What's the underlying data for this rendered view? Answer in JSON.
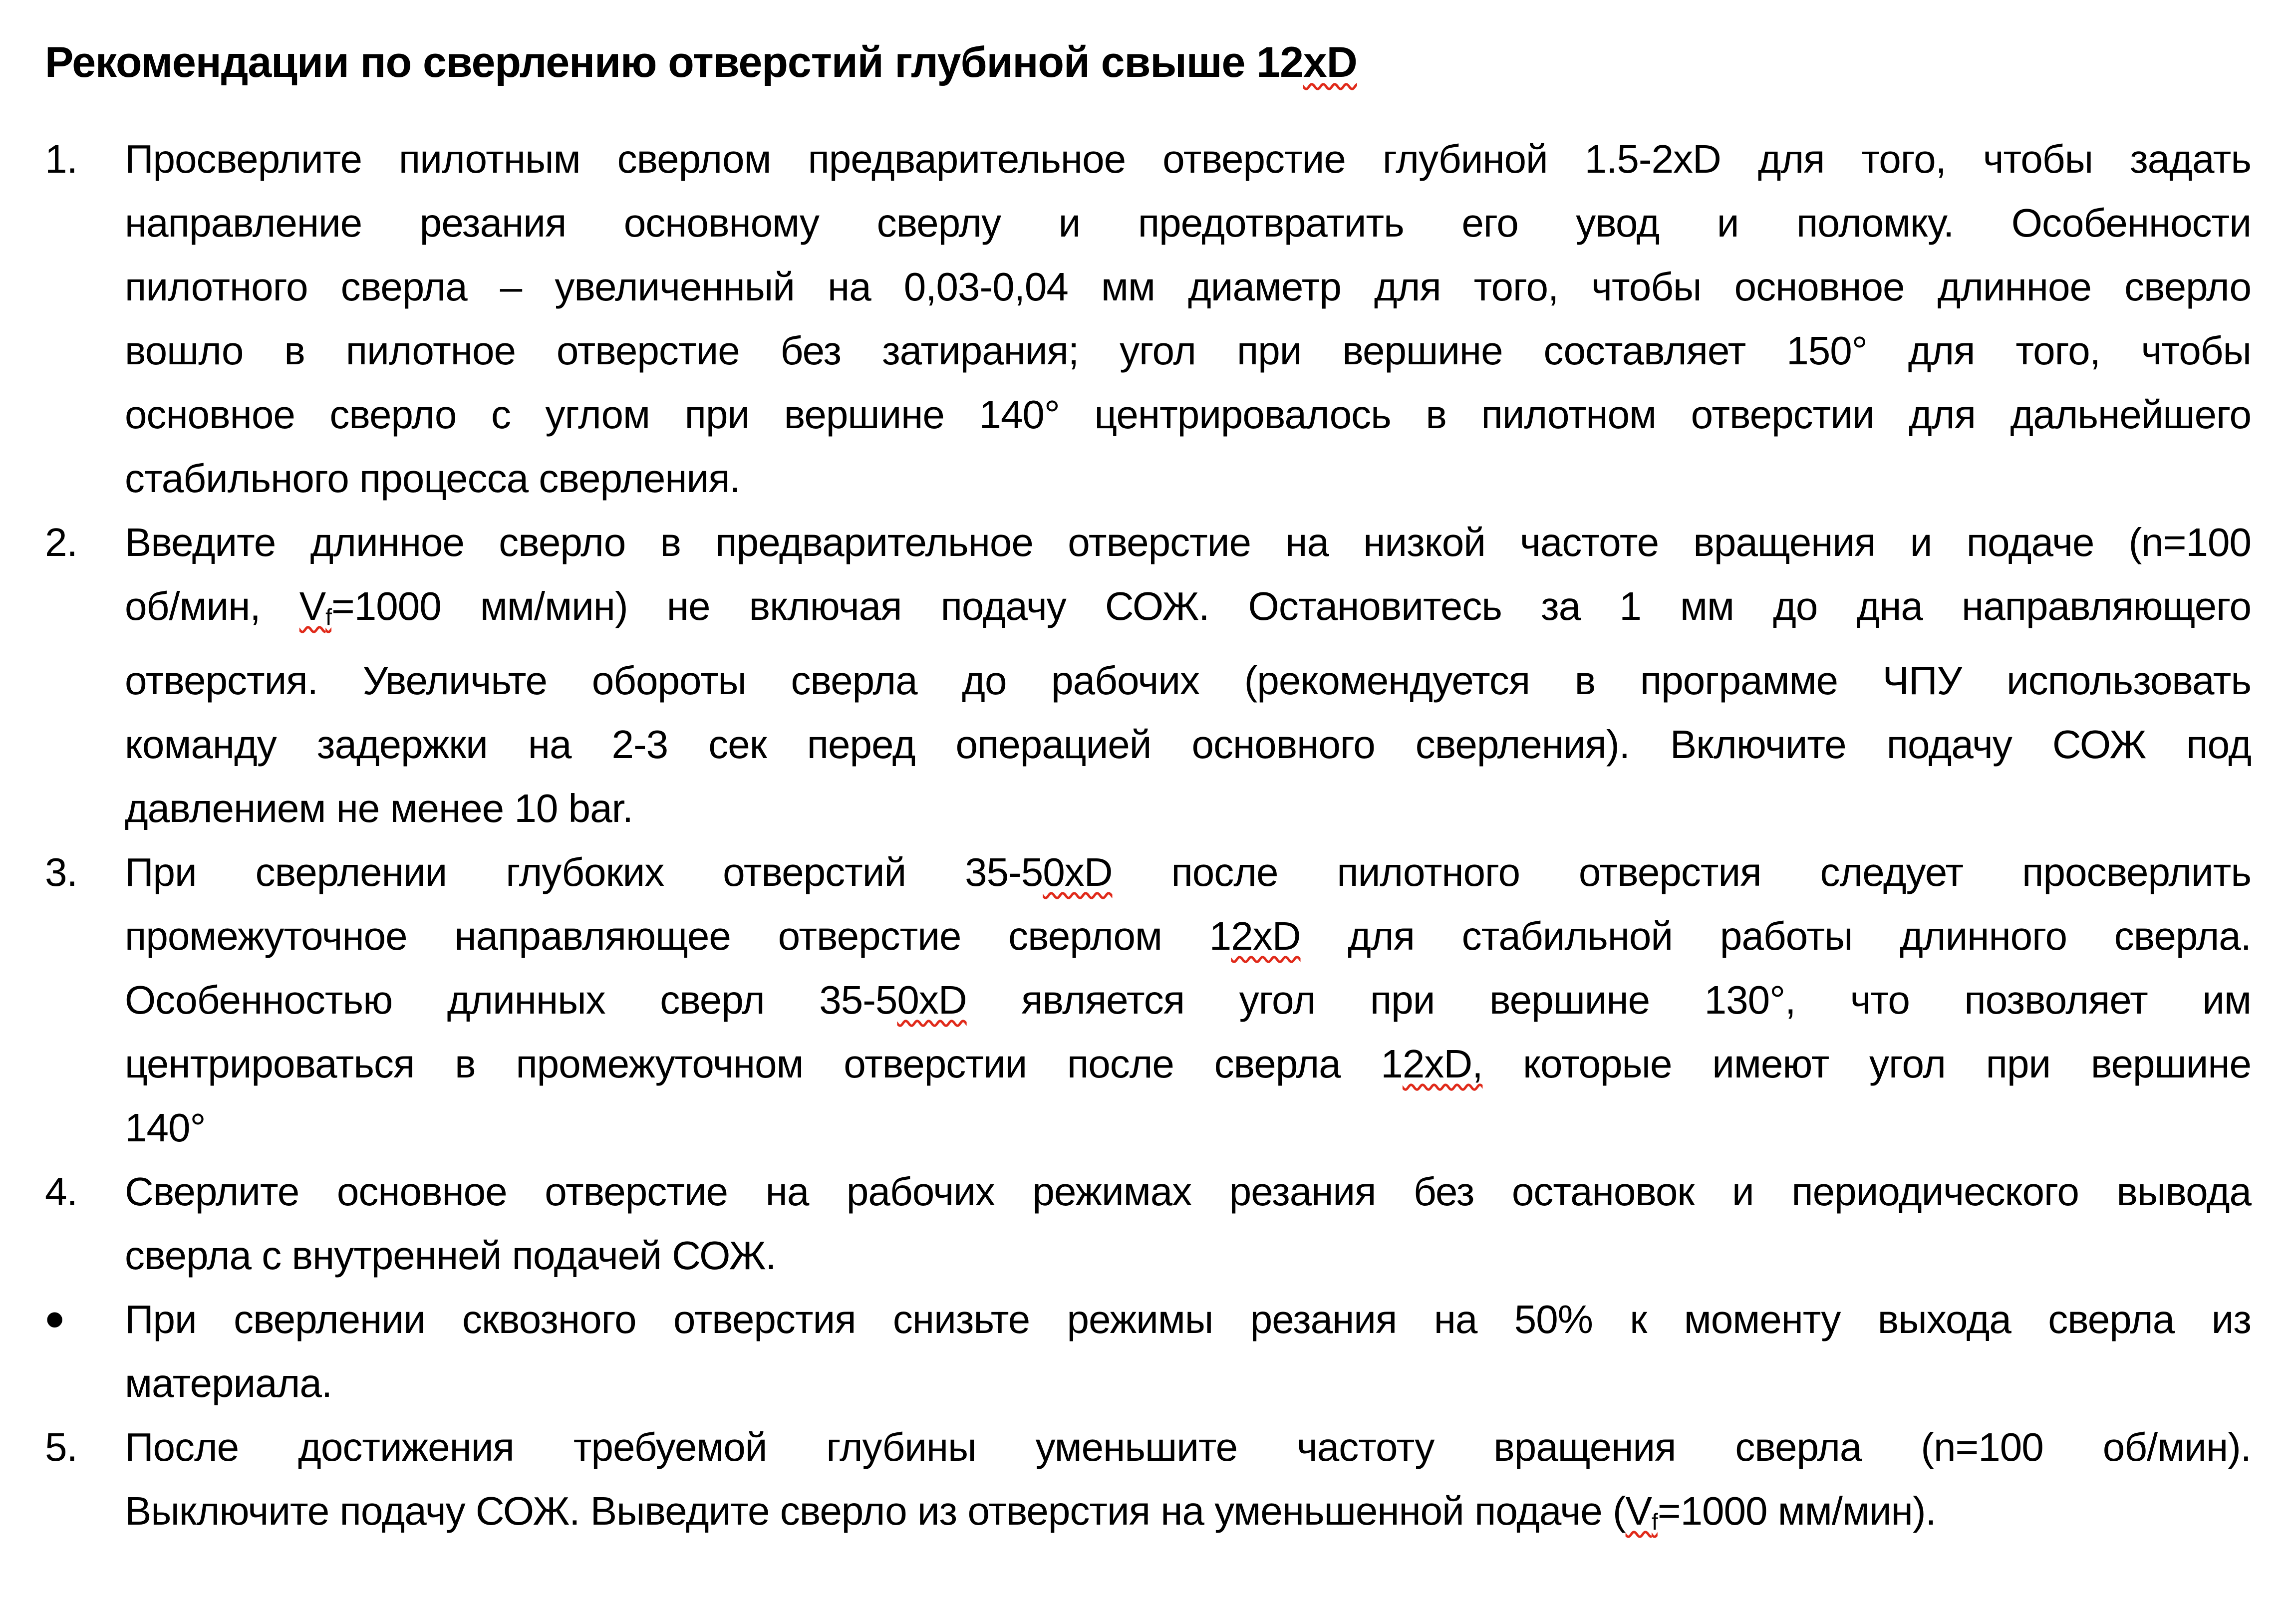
{
  "colors": {
    "background": "#ffffff",
    "text": "#000000",
    "spellcheck_underline": "#e02a1a"
  },
  "document": {
    "title": {
      "segments": [
        {
          "t": "Рекомендации по сверлению отверстий глубиной свыше 12"
        },
        {
          "t": "xD",
          "spell": true
        }
      ]
    },
    "paragraphs": [
      {
        "marker": "1.",
        "lines": [
          {
            "segments": [
              {
                "t": "Просверлите пилотным сверлом предварительное отверстие глубиной 1.5-2xD для того, чтобы задать"
              }
            ]
          },
          {
            "segments": [
              {
                "t": "направление резания основному сверлу и предотвратить его увод и поломку. Особенности"
              }
            ]
          },
          {
            "segments": [
              {
                "t": "пилотного сверла – увеличенный на 0,03-0,04 мм диаметр для того, чтобы основное длинное сверло"
              }
            ]
          },
          {
            "segments": [
              {
                "t": "вошло в пилотное отверстие без затирания; угол при вершине составляет 150° для того, чтобы"
              }
            ]
          },
          {
            "segments": [
              {
                "t": "основное сверло с углом при вершине 140° центрировалось в пилотном отверстии для дальнейшего"
              }
            ]
          },
          {
            "last": true,
            "segments": [
              {
                "t": "стабильного процесса сверления."
              }
            ]
          }
        ]
      },
      {
        "marker": "2.",
        "lines": [
          {
            "segments": [
              {
                "t": "Введите длинное сверло в предварительное отверстие на низкой частоте вращения и подаче (n=100"
              }
            ]
          },
          {
            "segments": [
              {
                "t": "об/мин, "
              },
              {
                "t": "V",
                "sub": "f",
                "spell": true
              },
              {
                "t": "=1000 мм/мин) не включая подачу СОЖ. Остановитесь за 1 мм до дна направляющего"
              }
            ]
          },
          {
            "segments": [
              {
                "t": "отверстия. Увеличьте обороты сверла до рабочих (рекомендуется в программе ЧПУ использовать"
              }
            ]
          },
          {
            "segments": [
              {
                "t": "команду задержки на 2-3 сек перед операцией основного сверления). Включите подачу СОЖ под"
              }
            ]
          },
          {
            "last": true,
            "segments": [
              {
                "t": "давлением не менее 10 bar."
              }
            ]
          }
        ]
      },
      {
        "marker": "3.",
        "lines": [
          {
            "segments": [
              {
                "t": "При сверлении глубоких отверстий 35-5"
              },
              {
                "t": "0xD",
                "spell": true
              },
              {
                "t": " после пилотного отверстия следует просверлить"
              }
            ]
          },
          {
            "segments": [
              {
                "t": "промежуточное направляющее отверстие сверлом 1"
              },
              {
                "t": "2xD",
                "spell": true
              },
              {
                "t": " для стабильной работы длинного сверла."
              }
            ]
          },
          {
            "segments": [
              {
                "t": "Особенностью длинных сверл 35-5"
              },
              {
                "t": "0xD",
                "spell": true
              },
              {
                "t": " является угол при вершине 130°, что позволяет им"
              }
            ]
          },
          {
            "segments": [
              {
                "t": "центрироваться в промежуточном отверстии после сверла 1"
              },
              {
                "t": "2xD,",
                "spell": true
              },
              {
                "t": " которые имеют угол при вершине"
              }
            ]
          },
          {
            "last": true,
            "segments": [
              {
                "t": "140°"
              }
            ]
          }
        ]
      },
      {
        "marker": "4.",
        "lines": [
          {
            "segments": [
              {
                "t": "Сверлите основное отверстие на рабочих режимах резания без остановок и периодического вывода"
              }
            ]
          },
          {
            "last": true,
            "segments": [
              {
                "t": "сверла с внутренней подачей СОЖ."
              }
            ]
          }
        ]
      },
      {
        "marker": "•",
        "bullet": true,
        "lines": [
          {
            "segments": [
              {
                "t": "При сверлении сквозного отверстия снизьте режимы резания на 50% к моменту выхода сверла из"
              }
            ]
          },
          {
            "last": true,
            "segments": [
              {
                "t": "материала."
              }
            ]
          }
        ]
      },
      {
        "marker": "5.",
        "lines": [
          {
            "segments": [
              {
                "t": "После достижения требуемой глубины уменьшите частоту вращения сверла (n=100 об/мин)."
              }
            ]
          },
          {
            "last": true,
            "segments": [
              {
                "t": "Выключите подачу СОЖ. Выведите сверло из отверстия на уменьшенной подаче ("
              },
              {
                "t": "V",
                "sub": "f",
                "spell": true
              },
              {
                "t": "=1000 мм/мин)."
              }
            ]
          }
        ]
      }
    ]
  }
}
